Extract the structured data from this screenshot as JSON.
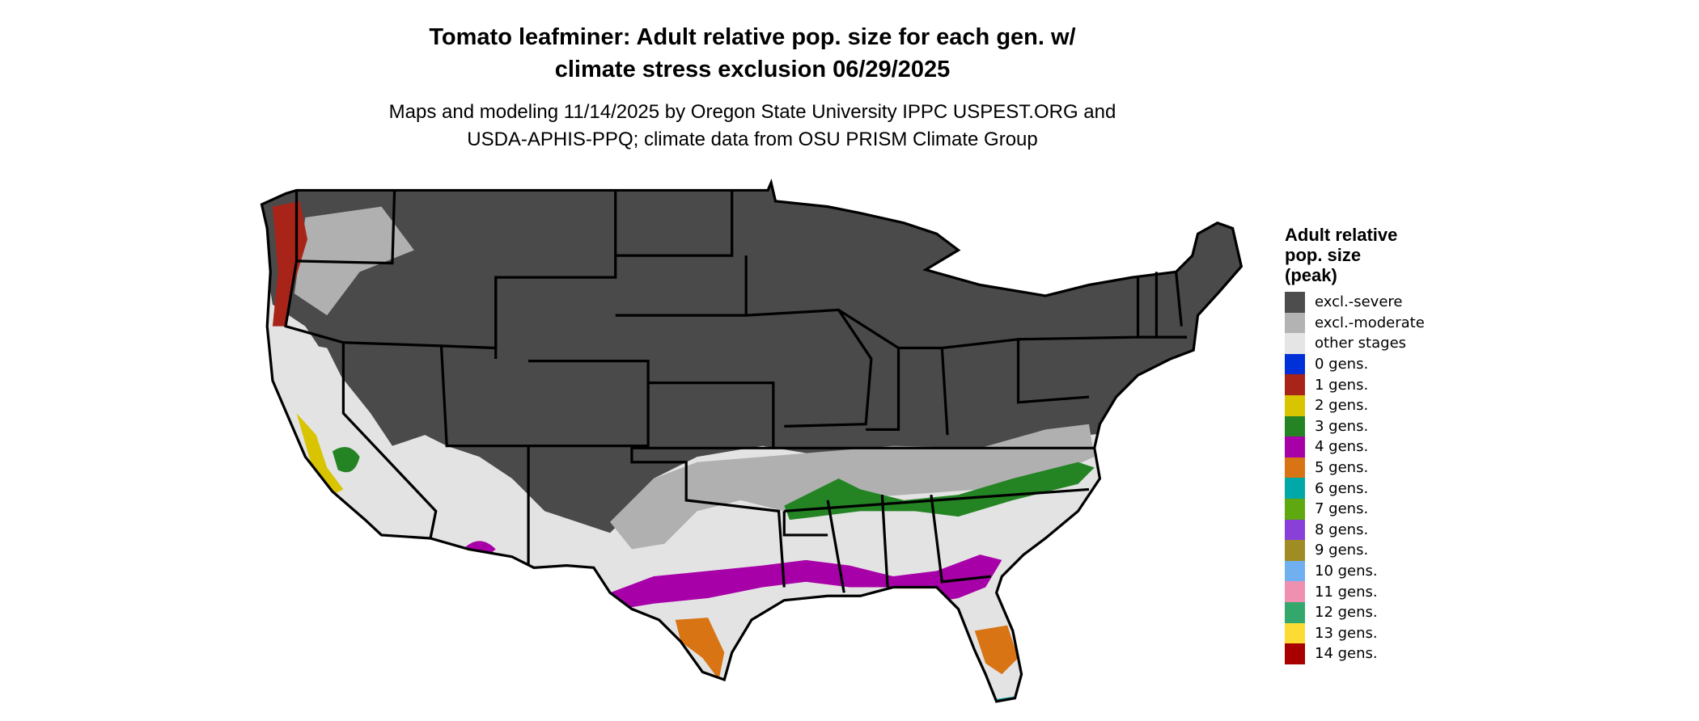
{
  "title": [
    "Tomato leafminer: Adult relative pop. size for each gen. w/",
    "climate stress exclusion 06/29/2025"
  ],
  "subtitle": [
    "Maps and modeling 11/14/2025 by Oregon State University IPPC USPEST.ORG and",
    "USDA-APHIS-PPQ; climate data from OSU PRISM Climate Group"
  ],
  "legend": {
    "title": [
      "Adult relative",
      "pop. size",
      "(peak)"
    ],
    "items": [
      {
        "label": "excl.-severe",
        "color": "#4d4d4d"
      },
      {
        "label": "excl.-moderate",
        "color": "#b3b3b3"
      },
      {
        "label": "other stages",
        "color": "#e5e5e5"
      },
      {
        "label": "0 gens.",
        "color": "#0030d8"
      },
      {
        "label": "1 gens.",
        "color": "#a82418"
      },
      {
        "label": "2 gens.",
        "color": "#d8c400"
      },
      {
        "label": "3 gens.",
        "color": "#248424"
      },
      {
        "label": "4 gens.",
        "color": "#a800a8"
      },
      {
        "label": "5 gens.",
        "color": "#d87414"
      },
      {
        "label": "6 gens.",
        "color": "#00a8a8"
      },
      {
        "label": "7 gens.",
        "color": "#60a810"
      },
      {
        "label": "8 gens.",
        "color": "#8840d8"
      },
      {
        "label": "9 gens.",
        "color": "#a08c24"
      },
      {
        "label": "10 gens.",
        "color": "#70b0f0"
      },
      {
        "label": "11 gens.",
        "color": "#f090b0"
      },
      {
        "label": "12 gens.",
        "color": "#34a86c"
      },
      {
        "label": "13 gens.",
        "color": "#fcdc34"
      },
      {
        "label": "14 gens.",
        "color": "#a80000"
      }
    ]
  }
}
